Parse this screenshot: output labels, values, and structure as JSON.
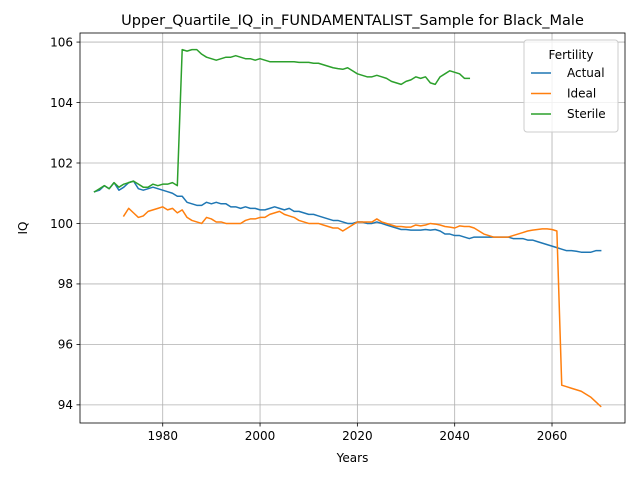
{
  "chart_data": {
    "type": "line",
    "title": "Upper_Quartile_IQ_in_FUNDAMENTALIST_Sample for Black_Male",
    "xlabel": "Years",
    "ylabel": "IQ",
    "xlim": [
      1963,
      2075
    ],
    "ylim": [
      93.4,
      106.3
    ],
    "xticks": [
      1980,
      2000,
      2020,
      2040,
      2060
    ],
    "yticks": [
      94,
      96,
      98,
      100,
      102,
      104,
      106
    ],
    "grid": true,
    "legend": {
      "title": "Fertility",
      "placement": "top-right"
    },
    "series": [
      {
        "name": "Actual",
        "color": "#1f77b4",
        "points": [
          [
            1966,
            101.05
          ],
          [
            1967,
            101.1
          ],
          [
            1968,
            101.25
          ],
          [
            1969,
            101.15
          ],
          [
            1970,
            101.35
          ],
          [
            1971,
            101.1
          ],
          [
            1972,
            101.2
          ],
          [
            1973,
            101.35
          ],
          [
            1974,
            101.4
          ],
          [
            1975,
            101.15
          ],
          [
            1976,
            101.1
          ],
          [
            1977,
            101.15
          ],
          [
            1978,
            101.2
          ],
          [
            1979,
            101.15
          ],
          [
            1980,
            101.1
          ],
          [
            1981,
            101.05
          ],
          [
            1982,
            101.0
          ],
          [
            1983,
            100.9
          ],
          [
            1984,
            100.9
          ],
          [
            1985,
            100.7
          ],
          [
            1986,
            100.65
          ],
          [
            1987,
            100.6
          ],
          [
            1988,
            100.6
          ],
          [
            1989,
            100.7
          ],
          [
            1990,
            100.65
          ],
          [
            1991,
            100.7
          ],
          [
            1992,
            100.65
          ],
          [
            1993,
            100.65
          ],
          [
            1994,
            100.55
          ],
          [
            1995,
            100.55
          ],
          [
            1996,
            100.5
          ],
          [
            1997,
            100.55
          ],
          [
            1998,
            100.5
          ],
          [
            1999,
            100.5
          ],
          [
            2000,
            100.45
          ],
          [
            2001,
            100.45
          ],
          [
            2002,
            100.5
          ],
          [
            2003,
            100.55
          ],
          [
            2004,
            100.5
          ],
          [
            2005,
            100.45
          ],
          [
            2006,
            100.5
          ],
          [
            2007,
            100.4
          ],
          [
            2008,
            100.4
          ],
          [
            2009,
            100.35
          ],
          [
            2010,
            100.3
          ],
          [
            2011,
            100.3
          ],
          [
            2012,
            100.25
          ],
          [
            2013,
            100.2
          ],
          [
            2014,
            100.15
          ],
          [
            2015,
            100.1
          ],
          [
            2016,
            100.1
          ],
          [
            2017,
            100.05
          ],
          [
            2018,
            100.0
          ],
          [
            2019,
            100.0
          ],
          [
            2020,
            100.05
          ],
          [
            2021,
            100.05
          ],
          [
            2022,
            100.0
          ],
          [
            2023,
            100.0
          ],
          [
            2024,
            100.05
          ],
          [
            2025,
            100.0
          ],
          [
            2026,
            99.95
          ],
          [
            2027,
            99.9
          ],
          [
            2028,
            99.85
          ],
          [
            2029,
            99.8
          ],
          [
            2030,
            99.8
          ],
          [
            2031,
            99.78
          ],
          [
            2032,
            99.78
          ],
          [
            2033,
            99.78
          ],
          [
            2034,
            99.8
          ],
          [
            2035,
            99.78
          ],
          [
            2036,
            99.8
          ],
          [
            2037,
            99.75
          ],
          [
            2038,
            99.65
          ],
          [
            2039,
            99.65
          ],
          [
            2040,
            99.6
          ],
          [
            2041,
            99.6
          ],
          [
            2042,
            99.55
          ],
          [
            2043,
            99.5
          ],
          [
            2044,
            99.55
          ],
          [
            2045,
            99.55
          ],
          [
            2046,
            99.55
          ],
          [
            2047,
            99.55
          ],
          [
            2048,
            99.55
          ],
          [
            2049,
            99.55
          ],
          [
            2050,
            99.55
          ],
          [
            2051,
            99.55
          ],
          [
            2052,
            99.5
          ],
          [
            2053,
            99.5
          ],
          [
            2054,
            99.5
          ],
          [
            2055,
            99.45
          ],
          [
            2056,
            99.45
          ],
          [
            2057,
            99.4
          ],
          [
            2058,
            99.35
          ],
          [
            2059,
            99.3
          ],
          [
            2060,
            99.25
          ],
          [
            2061,
            99.2
          ],
          [
            2062,
            99.15
          ],
          [
            2063,
            99.1
          ],
          [
            2064,
            99.1
          ],
          [
            2065,
            99.08
          ],
          [
            2066,
            99.05
          ],
          [
            2067,
            99.05
          ],
          [
            2068,
            99.05
          ],
          [
            2069,
            99.1
          ],
          [
            2070,
            99.1
          ]
        ]
      },
      {
        "name": "Ideal",
        "color": "#ff7f0e",
        "points": [
          [
            1972,
            100.25
          ],
          [
            1973,
            100.5
          ],
          [
            1974,
            100.35
          ],
          [
            1975,
            100.2
          ],
          [
            1976,
            100.25
          ],
          [
            1977,
            100.4
          ],
          [
            1978,
            100.45
          ],
          [
            1979,
            100.5
          ],
          [
            1980,
            100.55
          ],
          [
            1981,
            100.45
          ],
          [
            1982,
            100.5
          ],
          [
            1983,
            100.35
          ],
          [
            1984,
            100.45
          ],
          [
            1985,
            100.2
          ],
          [
            1986,
            100.1
          ],
          [
            1987,
            100.05
          ],
          [
            1988,
            100.0
          ],
          [
            1989,
            100.2
          ],
          [
            1990,
            100.15
          ],
          [
            1991,
            100.05
          ],
          [
            1992,
            100.05
          ],
          [
            1993,
            100.0
          ],
          [
            1994,
            100.0
          ],
          [
            1995,
            100.0
          ],
          [
            1996,
            100.0
          ],
          [
            1997,
            100.1
          ],
          [
            1998,
            100.15
          ],
          [
            1999,
            100.15
          ],
          [
            2000,
            100.2
          ],
          [
            2001,
            100.2
          ],
          [
            2002,
            100.3
          ],
          [
            2003,
            100.35
          ],
          [
            2004,
            100.4
          ],
          [
            2005,
            100.3
          ],
          [
            2006,
            100.25
          ],
          [
            2007,
            100.2
          ],
          [
            2008,
            100.1
          ],
          [
            2009,
            100.05
          ],
          [
            2010,
            100.0
          ],
          [
            2011,
            100.0
          ],
          [
            2012,
            100.0
          ],
          [
            2013,
            99.95
          ],
          [
            2014,
            99.9
          ],
          [
            2015,
            99.85
          ],
          [
            2016,
            99.85
          ],
          [
            2017,
            99.75
          ],
          [
            2018,
            99.85
          ],
          [
            2019,
            99.95
          ],
          [
            2020,
            100.05
          ],
          [
            2021,
            100.05
          ],
          [
            2022,
            100.05
          ],
          [
            2023,
            100.05
          ],
          [
            2024,
            100.15
          ],
          [
            2025,
            100.05
          ],
          [
            2026,
            100.0
          ],
          [
            2027,
            99.95
          ],
          [
            2028,
            99.9
          ],
          [
            2029,
            99.9
          ],
          [
            2030,
            99.88
          ],
          [
            2031,
            99.88
          ],
          [
            2032,
            99.95
          ],
          [
            2033,
            99.92
          ],
          [
            2034,
            99.95
          ],
          [
            2035,
            100.0
          ],
          [
            2036,
            99.98
          ],
          [
            2037,
            99.95
          ],
          [
            2038,
            99.9
          ],
          [
            2039,
            99.88
          ],
          [
            2040,
            99.85
          ],
          [
            2041,
            99.92
          ],
          [
            2042,
            99.9
          ],
          [
            2043,
            99.9
          ],
          [
            2044,
            99.85
          ],
          [
            2045,
            99.75
          ],
          [
            2046,
            99.65
          ],
          [
            2047,
            99.6
          ],
          [
            2048,
            99.55
          ],
          [
            2049,
            99.55
          ],
          [
            2050,
            99.55
          ],
          [
            2051,
            99.55
          ],
          [
            2052,
            99.6
          ],
          [
            2053,
            99.65
          ],
          [
            2054,
            99.7
          ],
          [
            2055,
            99.75
          ],
          [
            2056,
            99.78
          ],
          [
            2057,
            99.8
          ],
          [
            2058,
            99.82
          ],
          [
            2059,
            99.82
          ],
          [
            2060,
            99.8
          ],
          [
            2061,
            99.75
          ],
          [
            2062,
            94.65
          ],
          [
            2063,
            94.6
          ],
          [
            2064,
            94.55
          ],
          [
            2065,
            94.5
          ],
          [
            2066,
            94.45
          ],
          [
            2067,
            94.35
          ],
          [
            2068,
            94.25
          ],
          [
            2069,
            94.1
          ],
          [
            2070,
            93.95
          ]
        ]
      },
      {
        "name": "Sterile",
        "color": "#2ca02c",
        "points": [
          [
            1966,
            101.05
          ],
          [
            1967,
            101.15
          ],
          [
            1968,
            101.25
          ],
          [
            1969,
            101.15
          ],
          [
            1970,
            101.35
          ],
          [
            1971,
            101.2
          ],
          [
            1972,
            101.3
          ],
          [
            1973,
            101.35
          ],
          [
            1974,
            101.4
          ],
          [
            1975,
            101.3
          ],
          [
            1976,
            101.2
          ],
          [
            1977,
            101.2
          ],
          [
            1978,
            101.3
          ],
          [
            1979,
            101.25
          ],
          [
            1980,
            101.3
          ],
          [
            1981,
            101.3
          ],
          [
            1982,
            101.35
          ],
          [
            1983,
            101.25
          ],
          [
            1984,
            105.75
          ],
          [
            1985,
            105.7
          ],
          [
            1986,
            105.75
          ],
          [
            1987,
            105.75
          ],
          [
            1988,
            105.6
          ],
          [
            1989,
            105.5
          ],
          [
            1990,
            105.45
          ],
          [
            1991,
            105.4
          ],
          [
            1992,
            105.45
          ],
          [
            1993,
            105.5
          ],
          [
            1994,
            105.5
          ],
          [
            1995,
            105.55
          ],
          [
            1996,
            105.5
          ],
          [
            1997,
            105.45
          ],
          [
            1998,
            105.45
          ],
          [
            1999,
            105.4
          ],
          [
            2000,
            105.45
          ],
          [
            2001,
            105.4
          ],
          [
            2002,
            105.35
          ],
          [
            2003,
            105.35
          ],
          [
            2004,
            105.35
          ],
          [
            2005,
            105.35
          ],
          [
            2006,
            105.35
          ],
          [
            2007,
            105.35
          ],
          [
            2008,
            105.33
          ],
          [
            2009,
            105.33
          ],
          [
            2010,
            105.33
          ],
          [
            2011,
            105.3
          ],
          [
            2012,
            105.3
          ],
          [
            2013,
            105.25
          ],
          [
            2014,
            105.2
          ],
          [
            2015,
            105.15
          ],
          [
            2016,
            105.12
          ],
          [
            2017,
            105.1
          ],
          [
            2018,
            105.15
          ],
          [
            2019,
            105.05
          ],
          [
            2020,
            104.95
          ],
          [
            2021,
            104.9
          ],
          [
            2022,
            104.85
          ],
          [
            2023,
            104.85
          ],
          [
            2024,
            104.9
          ],
          [
            2025,
            104.85
          ],
          [
            2026,
            104.8
          ],
          [
            2027,
            104.7
          ],
          [
            2028,
            104.65
          ],
          [
            2029,
            104.6
          ],
          [
            2030,
            104.7
          ],
          [
            2031,
            104.75
          ],
          [
            2032,
            104.85
          ],
          [
            2033,
            104.8
          ],
          [
            2034,
            104.85
          ],
          [
            2035,
            104.65
          ],
          [
            2036,
            104.6
          ],
          [
            2037,
            104.85
          ],
          [
            2038,
            104.95
          ],
          [
            2039,
            105.05
          ],
          [
            2040,
            105.0
          ],
          [
            2041,
            104.95
          ],
          [
            2042,
            104.8
          ],
          [
            2043,
            104.8
          ]
        ]
      }
    ]
  }
}
